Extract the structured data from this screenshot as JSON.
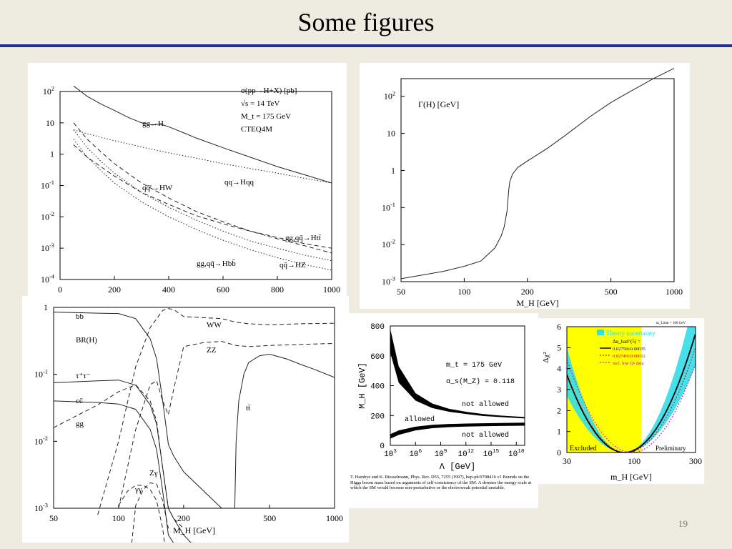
{
  "slide": {
    "title": "Some figures",
    "page_number": "19"
  },
  "chart_data": [
    {
      "id": "xsec",
      "type": "line",
      "scale": {
        "x": "linear",
        "y": "log"
      },
      "xlim": [
        0,
        1000
      ],
      "ylim": [
        0.0001,
        100
      ],
      "x_ticks": [
        "0",
        "200",
        "400",
        "600",
        "800",
        "1000"
      ],
      "y_ticks": [
        "10^2",
        "10",
        "1",
        "10^-1",
        "10^-2",
        "10^-3",
        "10^-4"
      ],
      "annotations": [
        "σ(pp→H+X) [pb]",
        "√s = 14 TeV",
        "M_t = 175 GeV",
        "CTEQ4M"
      ],
      "series": [
        {
          "name": "gg→H",
          "style": "solid",
          "x": [
            50,
            100,
            150,
            200,
            250,
            300,
            340,
            360,
            380,
            400,
            450,
            500,
            600,
            700,
            800,
            900,
            1000
          ],
          "y": [
            150,
            70,
            40,
            25,
            15,
            10,
            8.5,
            9,
            8.5,
            7.5,
            5,
            3.3,
            1.6,
            0.8,
            0.4,
            0.22,
            0.12
          ]
        },
        {
          "name": "qq→Hqq",
          "style": "dotted",
          "x": [
            50,
            100,
            200,
            300,
            400,
            500,
            600,
            700,
            800,
            900,
            1000
          ],
          "y": [
            6,
            4.5,
            2.7,
            1.7,
            1.1,
            0.75,
            0.5,
            0.35,
            0.25,
            0.17,
            0.12
          ]
        },
        {
          "name": "qq̄'→HW",
          "style": "dashed",
          "x": [
            50,
            100,
            150,
            200,
            300,
            400,
            500,
            600,
            700,
            800,
            900,
            1000
          ],
          "y": [
            10,
            3,
            1.2,
            0.5,
            0.12,
            0.04,
            0.015,
            0.007,
            0.0035,
            0.002,
            0.0012,
            0.0007
          ]
        },
        {
          "name": "gg,qq̄→Htt̄",
          "style": "dashed",
          "x": [
            50,
            100,
            200,
            300,
            400,
            500,
            600,
            700,
            800,
            900,
            1000
          ],
          "y": [
            2,
            0.8,
            0.2,
            0.06,
            0.025,
            0.011,
            0.006,
            0.0035,
            0.0022,
            0.0014,
            0.001
          ]
        },
        {
          "name": "qq̄→HZ",
          "style": "dotted",
          "x": [
            50,
            100,
            150,
            200,
            300,
            400,
            500,
            600,
            700,
            800,
            900,
            1000
          ],
          "y": [
            6,
            1.6,
            0.6,
            0.25,
            0.06,
            0.02,
            0.008,
            0.0035,
            0.0017,
            0.001,
            0.0006,
            0.0004
          ]
        },
        {
          "name": "gg,qq̄→Hbb̄",
          "style": "dotted",
          "x": [
            50,
            100,
            150,
            200,
            300,
            400,
            500,
            600,
            700,
            800,
            900,
            1000
          ],
          "y": [
            3,
            0.8,
            0.3,
            0.12,
            0.03,
            0.01,
            0.004,
            0.0018,
            0.0009,
            0.0005,
            0.0003,
            0.0002
          ]
        }
      ]
    },
    {
      "id": "width",
      "type": "line",
      "scale": {
        "x": "log",
        "y": "log"
      },
      "xlim": [
        50,
        1000
      ],
      "ylim": [
        0.001,
        300
      ],
      "x_ticks": [
        "50",
        "100",
        "200",
        "500",
        "1000"
      ],
      "y_ticks": [
        "10^2",
        "10",
        "1",
        "10^-1",
        "10^-2",
        "10^-3"
      ],
      "xlabel": "M_H [GeV]",
      "annotations": [
        "Γ(H) [GeV]"
      ],
      "series": [
        {
          "name": "Γ(H) [GeV]",
          "style": "solid",
          "x": [
            50,
            80,
            100,
            120,
            140,
            150,
            155,
            160,
            163,
            165,
            170,
            180,
            200,
            250,
            300,
            400,
            500,
            600,
            800,
            1000
          ],
          "y": [
            0.0012,
            0.0019,
            0.0026,
            0.0036,
            0.0081,
            0.017,
            0.03,
            0.08,
            0.3,
            0.5,
            0.8,
            1.2,
            1.8,
            4,
            8.5,
            29,
            68,
            123,
            304,
            568
          ]
        }
      ]
    },
    {
      "id": "br",
      "type": "line",
      "scale": {
        "x": "log",
        "y": "log"
      },
      "xlim": [
        50,
        1000
      ],
      "ylim": [
        0.001,
        1
      ],
      "x_ticks": [
        "50",
        "100",
        "200",
        "500",
        "1000"
      ],
      "y_ticks": [
        "1",
        "10^-1",
        "10^-2",
        "10^-3"
      ],
      "xlabel": "M_H [GeV]",
      "annotations": [
        "BR(H)"
      ],
      "series": [
        {
          "name": "bb̄",
          "style": "solid",
          "x": [
            50,
            80,
            100,
            120,
            140,
            150,
            160,
            170,
            180,
            200,
            300
          ],
          "y": [
            0.85,
            0.82,
            0.81,
            0.68,
            0.34,
            0.17,
            0.04,
            0.009,
            0.006,
            0.0035,
            0.001
          ]
        },
        {
          "name": "τ⁺τ⁻",
          "style": "solid",
          "x": [
            50,
            80,
            100,
            120,
            140,
            150,
            160,
            170,
            180,
            200,
            300
          ],
          "y": [
            0.075,
            0.08,
            0.082,
            0.069,
            0.035,
            0.018,
            0.004,
            0.001,
            0.0007,
            0.0004,
            0.0001
          ]
        },
        {
          "name": "cc̄",
          "style": "solid",
          "x": [
            50,
            80,
            100,
            120,
            140,
            150,
            160,
            170,
            180,
            200
          ],
          "y": [
            0.04,
            0.038,
            0.036,
            0.03,
            0.015,
            0.0075,
            0.0018,
            0.0004,
            0.0003,
            0.0002
          ]
        },
        {
          "name": "gg",
          "style": "dashed",
          "x": [
            50,
            80,
            100,
            120,
            140,
            150,
            160,
            170,
            180,
            200
          ],
          "y": [
            0.016,
            0.035,
            0.055,
            0.07,
            0.04,
            0.02,
            0.004,
            0.001,
            0.0007,
            0.0005
          ]
        },
        {
          "name": "γγ",
          "style": "dashed",
          "x": [
            100,
            110,
            120,
            130,
            140,
            150,
            160,
            170
          ],
          "y": [
            0.0011,
            0.0018,
            0.0022,
            0.0022,
            0.0019,
            0.0013,
            0.0005,
            0.0001
          ]
        },
        {
          "name": "Zγ",
          "style": "dashed",
          "x": [
            115,
            120,
            130,
            140,
            150,
            160,
            170
          ],
          "y": [
            0.0003,
            0.0011,
            0.0019,
            0.0024,
            0.0023,
            0.0013,
            0.0005
          ]
        },
        {
          "name": "WW",
          "style": "dashed",
          "x": [
            80,
            100,
            120,
            140,
            160,
            170,
            180,
            200,
            250,
            300,
            350,
            400,
            500,
            700,
            1000
          ],
          "y": [
            0.0008,
            0.01,
            0.13,
            0.5,
            0.9,
            0.96,
            0.93,
            0.73,
            0.7,
            0.68,
            0.6,
            0.57,
            0.55,
            0.57,
            0.58
          ]
        },
        {
          "name": "ZZ",
          "style": "dashed",
          "x": [
            100,
            120,
            140,
            150,
            160,
            170,
            180,
            200,
            250,
            300,
            350,
            400,
            500,
            700,
            1000
          ],
          "y": [
            0.001,
            0.015,
            0.07,
            0.08,
            0.04,
            0.025,
            0.06,
            0.26,
            0.3,
            0.31,
            0.27,
            0.26,
            0.27,
            0.28,
            0.29
          ]
        },
        {
          "name": "tt̄",
          "style": "solid",
          "x": [
            345,
            350,
            360,
            380,
            400,
            450,
            500,
            600,
            700,
            800,
            1000
          ],
          "y": [
            0.001,
            0.01,
            0.04,
            0.1,
            0.15,
            0.19,
            0.2,
            0.17,
            0.14,
            0.12,
            0.09
          ]
        }
      ]
    },
    {
      "id": "bounds",
      "type": "area",
      "scale": {
        "x": "log",
        "y": "linear"
      },
      "xlim": [
        1000,
        1e+19
      ],
      "ylim": [
        0,
        800
      ],
      "x_ticks": [
        "10^3",
        "10^6",
        "10^9",
        "10^12",
        "10^15",
        "10^18"
      ],
      "y_ticks": [
        "0",
        "200",
        "400",
        "600",
        "800"
      ],
      "xlabel": "Λ [GeV]",
      "ylabel": "M_H [GeV]",
      "annotations": [
        "m_t = 175 GeV",
        "α_s(M_Z) = 0.118",
        "not allowed",
        "allowed",
        "not allowed"
      ],
      "caption": "T. Hambye and K. Riesselmann, Phys. Rev. D55, 7255 (1997), hep-ph/9708416 v1 Bounds on the Higgs boson mass based on arguments of self-consistency of the SM. Λ denotes the energy scale at which the SM would become non-perturbative or the electroweak potential unstable.",
      "series": [
        {
          "name": "upper_hi",
          "x": [
            1000,
            10000.0,
            1000000.0,
            100000000.0,
            10000000000.0,
            1000000000000.0,
            100000000000000.0,
            1e+16,
            1e+19
          ],
          "y": [
            780,
            530,
            350,
            280,
            245,
            225,
            210,
            200,
            190
          ]
        },
        {
          "name": "upper_lo",
          "x": [
            1000,
            10000.0,
            1000000.0,
            100000000.0,
            10000000000.0,
            1000000000000.0,
            100000000000000.0,
            1e+16,
            1e+19
          ],
          "y": [
            620,
            420,
            300,
            250,
            225,
            210,
            197,
            190,
            180
          ]
        },
        {
          "name": "lower_hi",
          "x": [
            1000,
            10000.0,
            1000000.0,
            100000000.0,
            10000000000.0,
            1000000000000.0,
            100000000000000.0,
            1e+16,
            1e+19
          ],
          "y": [
            75,
            100,
            125,
            138,
            143,
            146,
            148,
            150,
            152
          ]
        },
        {
          "name": "lower_lo",
          "x": [
            1000,
            10000.0,
            1000000.0,
            100000000.0,
            10000000000.0,
            1000000000000.0,
            100000000000000.0,
            1e+16,
            1e+19
          ],
          "y": [
            45,
            70,
            100,
            115,
            122,
            126,
            128,
            130,
            132
          ]
        }
      ]
    },
    {
      "id": "chi2",
      "type": "line",
      "scale": {
        "x": "log",
        "y": "linear"
      },
      "xlim": [
        30,
        300
      ],
      "ylim": [
        0,
        6
      ],
      "x_ticks": [
        "30",
        "100",
        "300"
      ],
      "y_ticks": [
        "0",
        "1",
        "2",
        "3",
        "4",
        "5",
        "6"
      ],
      "xlabel": "m_H [GeV]",
      "ylabel": "Δχ²",
      "annotations": [
        "m_Limit = 166 GeV",
        "Excluded",
        "Preliminary",
        "Theory uncertainty",
        "Δα_had^(5) ="
      ],
      "excluded_x": [
        30,
        114
      ],
      "colors": {
        "band": "#33dde8",
        "excluded": "#ffff00",
        "central": "#000000",
        "alt": "#cc0000",
        "lowq": "#cc00cc"
      },
      "series": [
        {
          "name": "0.02758±0.00035",
          "style": "solid",
          "minimum": 84,
          "width": 0.58
        },
        {
          "name": "0.02749±0.00012",
          "style": "dotted",
          "minimum": 87,
          "width": 0.6
        },
        {
          "name": "incl. low Q² data",
          "style": "dotted",
          "minimum": 96,
          "width": 0.6
        }
      ]
    }
  ]
}
